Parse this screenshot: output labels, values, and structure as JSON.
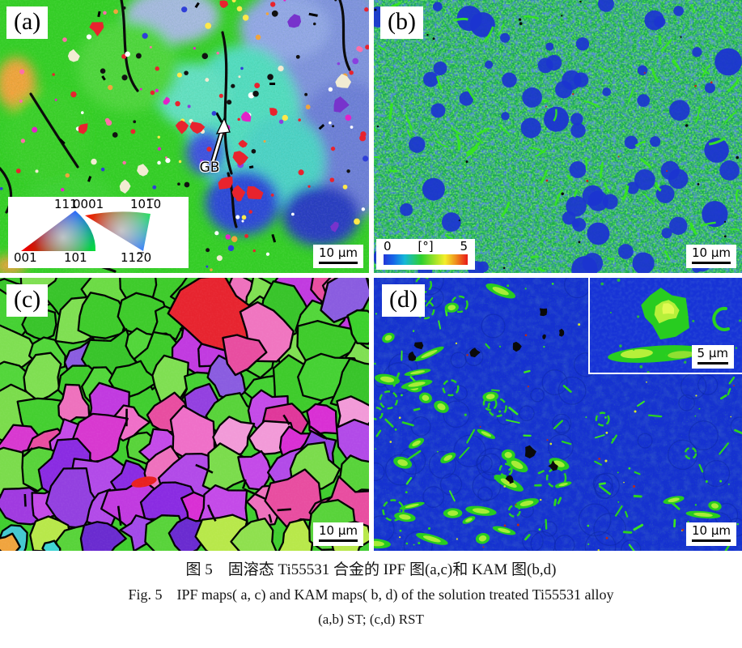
{
  "panels": {
    "a": {
      "label": "(a)",
      "annotation": "GB",
      "scale_label": "10 μm"
    },
    "b": {
      "label": "(b)",
      "scale_label": "10 μm",
      "colorbar": {
        "min": "0",
        "unit": "[°]",
        "max": "5"
      }
    },
    "c": {
      "label": "(c)",
      "scale_label": "10 μm"
    },
    "d": {
      "label": "(d)",
      "scale_label": "10 μm",
      "inset_scale_label": "5 μm"
    }
  },
  "ipf_legend": {
    "cubic": {
      "apex": "111",
      "bottom_left": "001",
      "bottom_right": "101"
    },
    "hexagonal": {
      "top_left": "0001",
      "top_right": "101̅0",
      "bottom_right": "112̅0"
    }
  },
  "caption": {
    "line1_zh": "图 5　固溶态 Ti55531 合金的 IPF 图(a,c)和 KAM 图(b,d)",
    "line2_en": "Fig. 5　IPF maps( a, c) and KAM maps( b, d) of the solution treated Ti55531 alloy",
    "line3_conditions": "(a,b) ST; (c,d) RST"
  },
  "colors": {
    "ipf_green_base": "#35cf27",
    "periwinkle": "#8093de",
    "cyan_patch": "#52dcc0",
    "kam_mottle_green": "#18a84e",
    "kam_blue_patch": "#1b34d0",
    "kam_bright_green": "#35e620",
    "kam_deep_blue": "#1531d0",
    "feature_green": "#28cc20",
    "feature_core": "#b6f03a",
    "boundary_black": "#000000"
  }
}
